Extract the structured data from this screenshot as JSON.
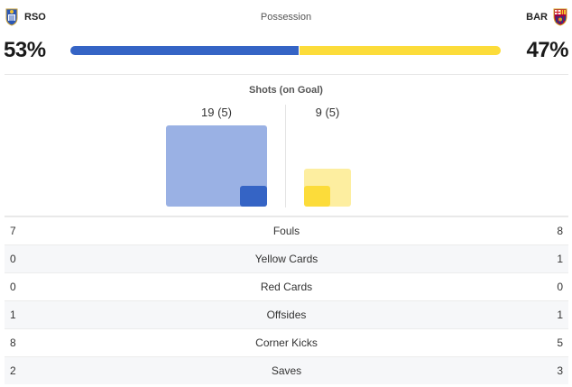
{
  "teams": {
    "home": {
      "abbr": "RSO",
      "crest_icon": "real-sociedad-crest-icon",
      "color": "#3564c5"
    },
    "away": {
      "abbr": "BAR",
      "crest_icon": "barcelona-crest-icon",
      "color": "#fcdc3a"
    }
  },
  "possession": {
    "title": "Possession",
    "home_value": 53,
    "away_value": 47,
    "home_label": "53%",
    "away_label": "47%"
  },
  "shots": {
    "title": "Shots (on Goal)",
    "home": {
      "total": 19,
      "on_goal": 5,
      "label": "19 (5)"
    },
    "away": {
      "total": 9,
      "on_goal": 5,
      "label": "9 (5)"
    }
  },
  "stats": [
    {
      "label": "Fouls",
      "home": "7",
      "away": "8"
    },
    {
      "label": "Yellow Cards",
      "home": "0",
      "away": "1"
    },
    {
      "label": "Red Cards",
      "home": "0",
      "away": "0"
    },
    {
      "label": "Offsides",
      "home": "1",
      "away": "1"
    },
    {
      "label": "Corner Kicks",
      "home": "8",
      "away": "5"
    },
    {
      "label": "Saves",
      "home": "2",
      "away": "3"
    }
  ]
}
